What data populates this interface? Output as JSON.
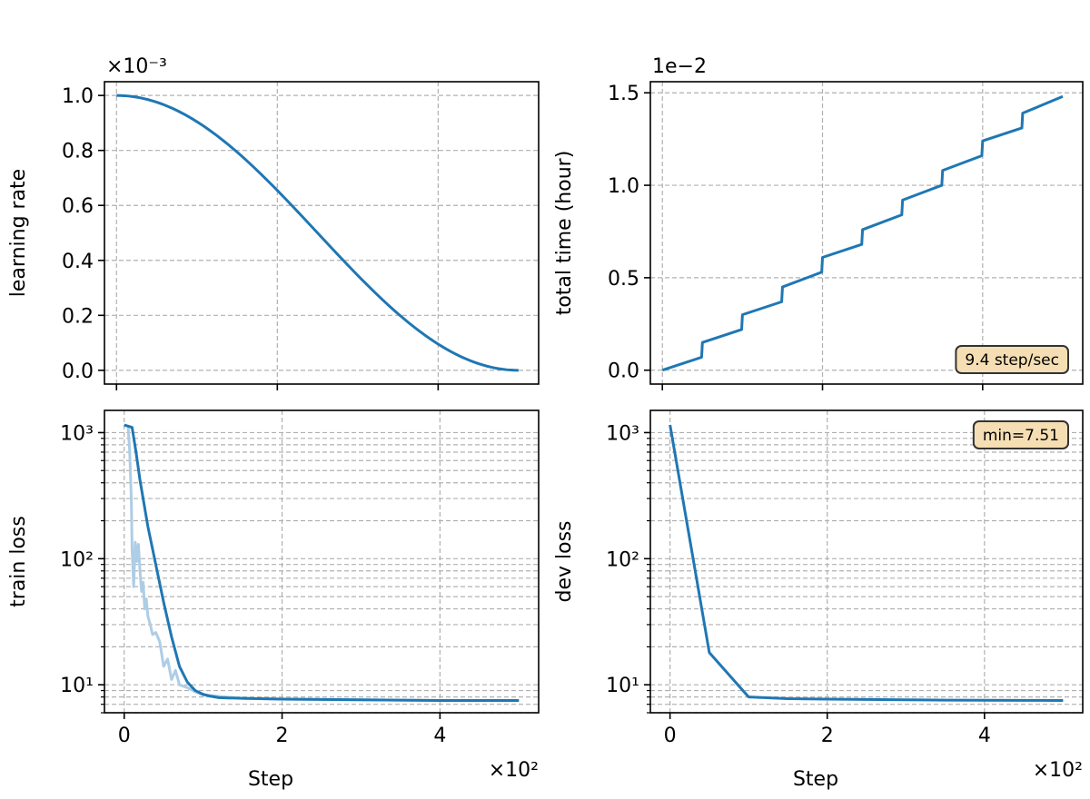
{
  "colors": {
    "line": "#1f77b4",
    "line_light": "#aecde6",
    "grid": "#b0b0b0",
    "note_bg": "#f5deb3",
    "note_border": "#333333"
  },
  "chart_data": [
    {
      "id": "learning-rate",
      "type": "line",
      "title": "",
      "xlabel": "",
      "ylabel": "learning rate",
      "offset_text": "×10⁻³",
      "xlim": [
        -0.15,
        5.25
      ],
      "ylim": [
        -0.05,
        1.05
      ],
      "xticks": [
        0,
        2,
        4
      ],
      "xtick_labels": [],
      "yticks": [
        0.0,
        0.2,
        0.4,
        0.6,
        0.8,
        1.0
      ],
      "ytick_labels": [
        "0.0",
        "0.2",
        "0.4",
        "0.6",
        "0.8",
        "1.0"
      ],
      "yscale": "linear",
      "grid": true,
      "series": [
        {
          "style": "main",
          "shape": "cosine",
          "x": [
            0,
            0.5,
            1,
            1.5,
            2,
            2.5,
            3,
            3.5,
            4,
            4.5,
            5
          ],
          "y": [
            1.0,
            0.976,
            0.905,
            0.794,
            0.655,
            0.5,
            0.345,
            0.206,
            0.095,
            0.024,
            0.0
          ]
        }
      ]
    },
    {
      "id": "total-time",
      "type": "line",
      "title": "",
      "xlabel": "",
      "ylabel": "total time (hour)",
      "offset_text": "1e−2",
      "xlim": [
        -0.15,
        5.25
      ],
      "ylim": [
        -0.075,
        1.56
      ],
      "xticks": [
        0,
        2,
        4
      ],
      "xtick_labels": [],
      "yticks": [
        0.0,
        0.5,
        1.0,
        1.5
      ],
      "ytick_labels": [
        "0.0",
        "0.5",
        "1.0",
        "1.5"
      ],
      "yscale": "linear",
      "grid": true,
      "annotation": {
        "text": "9.4 step/sec",
        "position": "bottom-right"
      },
      "series": [
        {
          "style": "main",
          "x": [
            0,
            0.49,
            0.5,
            0.99,
            1.0,
            1.49,
            1.5,
            1.99,
            2.0,
            2.49,
            2.5,
            2.99,
            3.0,
            3.49,
            3.5,
            3.99,
            4.0,
            4.49,
            4.5,
            5.0
          ],
          "y": [
            0.0,
            0.07,
            0.15,
            0.22,
            0.3,
            0.37,
            0.45,
            0.53,
            0.61,
            0.68,
            0.76,
            0.84,
            0.92,
            1.0,
            1.08,
            1.16,
            1.24,
            1.31,
            1.39,
            1.48
          ]
        }
      ]
    },
    {
      "id": "train-loss",
      "type": "line",
      "title": "",
      "xlabel": "Step",
      "ylabel": "train loss",
      "offset_text": "×10²",
      "xlim": [
        -0.25,
        5.25
      ],
      "ylim": [
        6,
        1500
      ],
      "xticks": [
        0,
        2,
        4
      ],
      "xtick_labels": [
        "0",
        "2",
        "4"
      ],
      "yticks": [
        10,
        100,
        1000
      ],
      "ytick_labels": [
        "10¹",
        "10²",
        "10³"
      ],
      "yscale": "log",
      "grid": true,
      "series": [
        {
          "style": "raw",
          "x": [
            0.05,
            0.07,
            0.09,
            0.1,
            0.12,
            0.14,
            0.16,
            0.18,
            0.2,
            0.22,
            0.24,
            0.26,
            0.28,
            0.3,
            0.33,
            0.36,
            0.4,
            0.45,
            0.5,
            0.55,
            0.6,
            0.65,
            0.7,
            0.8,
            0.9,
            1.0,
            1.5,
            2.0,
            3.0,
            4.0,
            5.0
          ],
          "y": [
            1100,
            700,
            300,
            120,
            60,
            135,
            95,
            130,
            80,
            55,
            65,
            40,
            48,
            35,
            30,
            25,
            26,
            22,
            14,
            16,
            11,
            13,
            10,
            9.5,
            8.8,
            8.3,
            7.8,
            7.7,
            7.6,
            7.5,
            7.5
          ]
        },
        {
          "style": "main",
          "x": [
            0.0,
            0.1,
            0.15,
            0.2,
            0.3,
            0.4,
            0.5,
            0.6,
            0.7,
            0.8,
            0.9,
            1.0,
            1.1,
            1.2,
            1.5,
            2.0,
            3.0,
            4.0,
            5.0
          ],
          "y": [
            1150,
            1100,
            700,
            420,
            180,
            90,
            45,
            24,
            14,
            10.5,
            9,
            8.4,
            8.1,
            7.9,
            7.8,
            7.7,
            7.6,
            7.5,
            7.5
          ]
        }
      ]
    },
    {
      "id": "dev-loss",
      "type": "line",
      "title": "",
      "xlabel": "Step",
      "ylabel": "dev loss",
      "offset_text": "×10²",
      "xlim": [
        -0.25,
        5.25
      ],
      "ylim": [
        6,
        1500
      ],
      "xticks": [
        0,
        2,
        4
      ],
      "xtick_labels": [
        "0",
        "2",
        "4"
      ],
      "yticks": [
        10,
        100,
        1000
      ],
      "ytick_labels": [
        "10¹",
        "10²",
        "10³"
      ],
      "yscale": "log",
      "grid": true,
      "annotation": {
        "text": "min=7.51",
        "position": "top-right"
      },
      "series": [
        {
          "style": "main",
          "x": [
            0,
            0.5,
            1.0,
            1.5,
            2.0,
            2.5,
            3.0,
            3.5,
            4.0,
            4.5,
            5.0
          ],
          "y": [
            1150,
            18,
            8.0,
            7.75,
            7.7,
            7.65,
            7.6,
            7.55,
            7.53,
            7.52,
            7.51
          ]
        }
      ]
    }
  ]
}
